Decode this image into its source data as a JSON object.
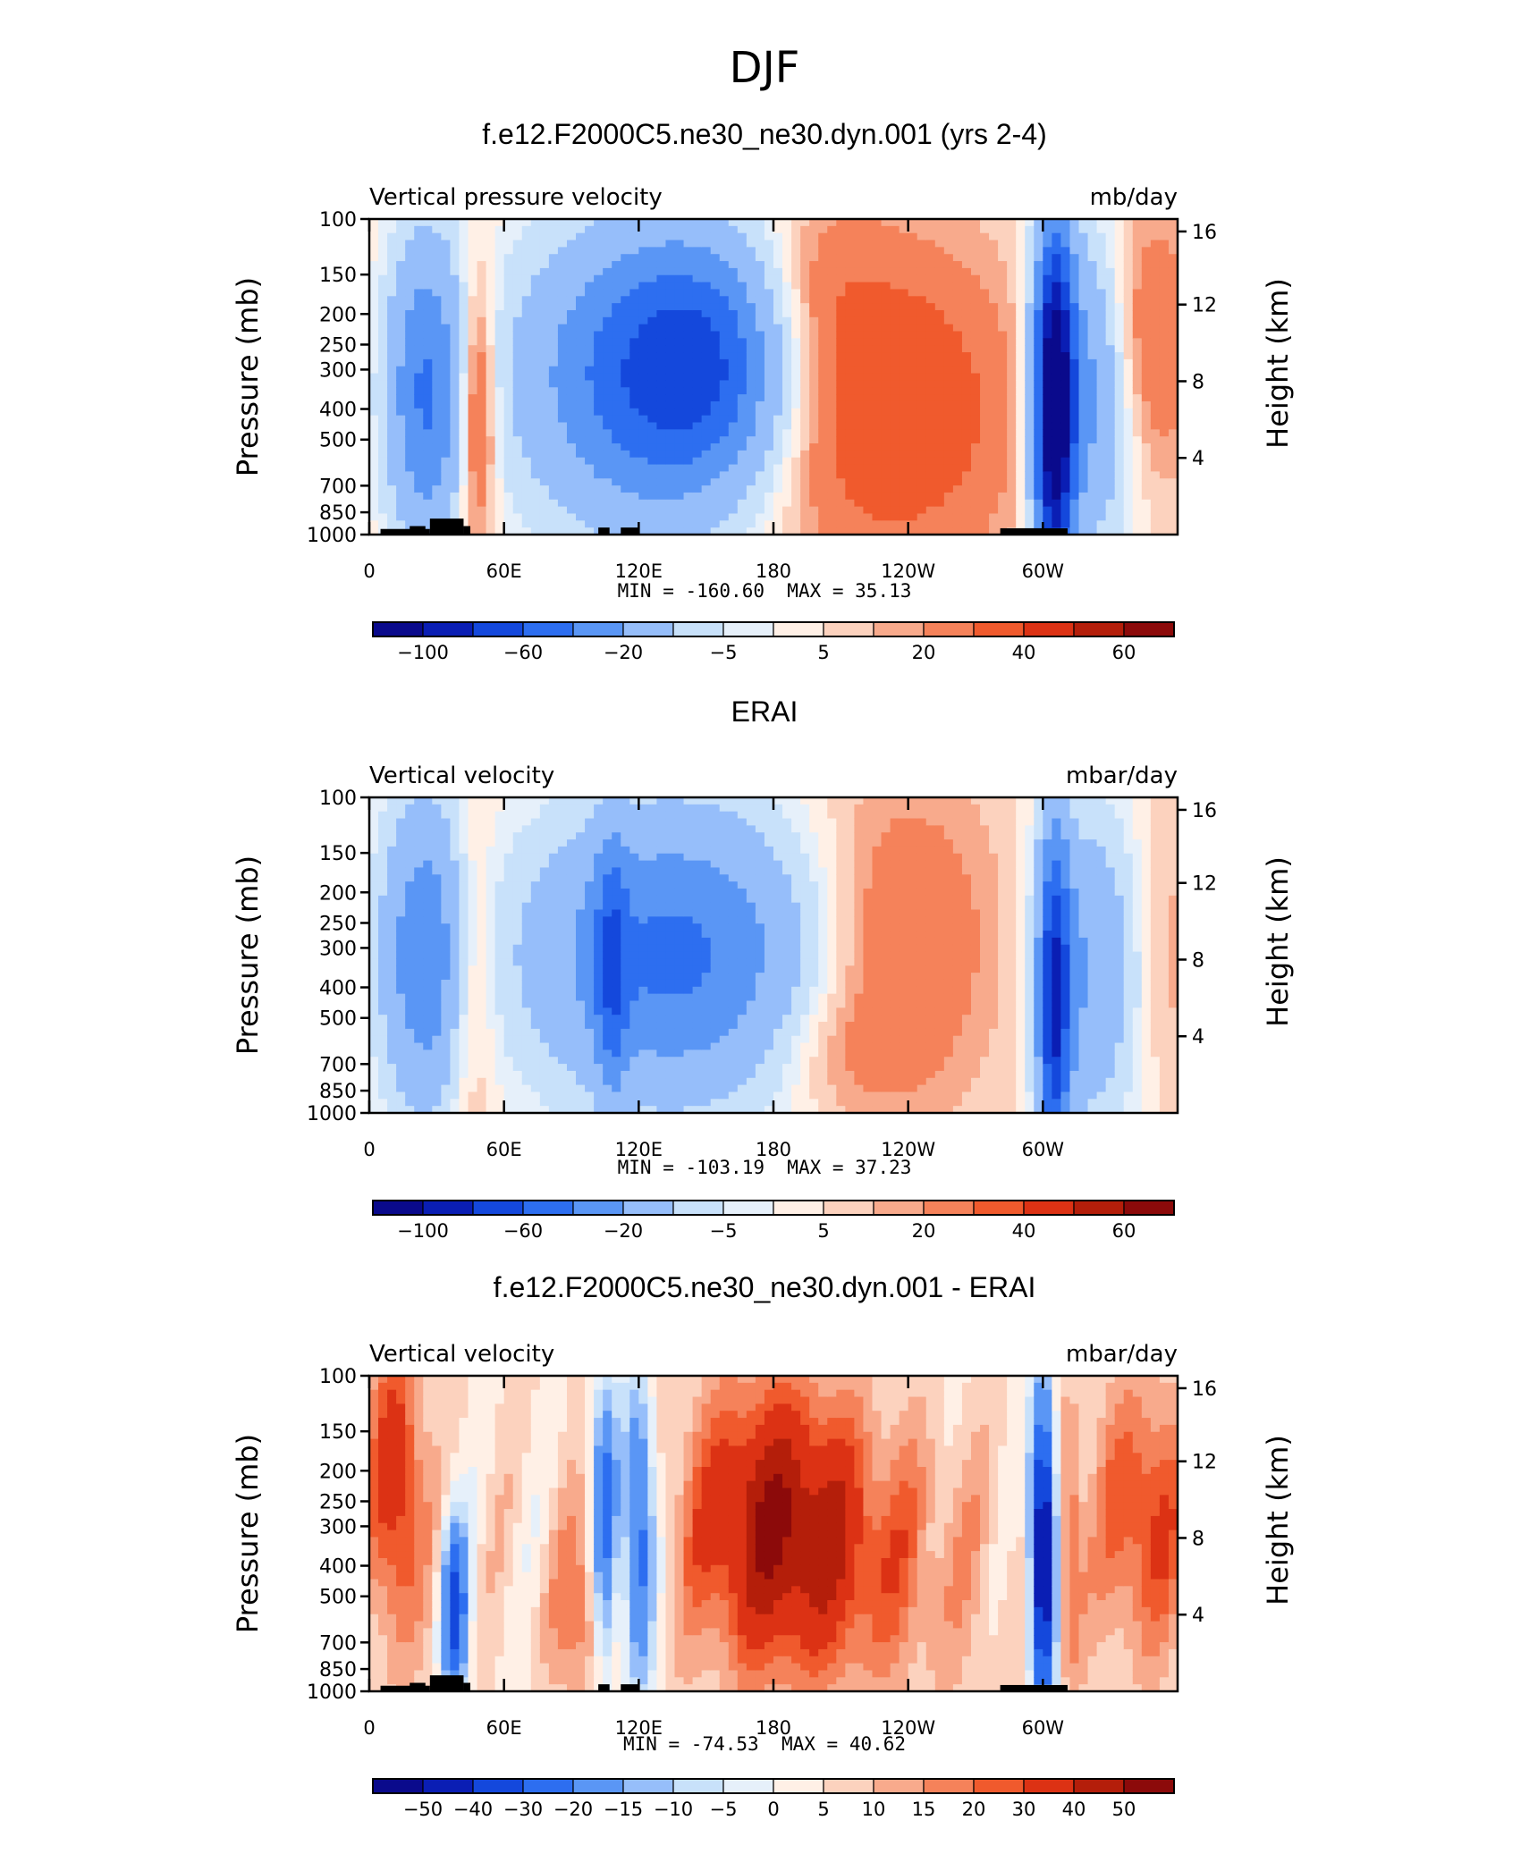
{
  "figure": {
    "title": "DJF"
  },
  "chart_data": [
    {
      "type": "heatmap",
      "title": "f.e12.F2000C5.ne30_ne30.dyn.001 (yrs 2-4)",
      "left_label": "Vertical pressure velocity",
      "units": "mb/day",
      "ylabel": "Pressure (mb)",
      "ylabel_right": "Height (km)",
      "xticks": [
        "0",
        "60E",
        "120E",
        "180",
        "120W",
        "60W"
      ],
      "yticks": [
        "100",
        "150",
        "200",
        "250",
        "300",
        "400",
        "500",
        "700",
        "850",
        "1000"
      ],
      "yticks_right": [
        "16",
        "12",
        "8",
        "4"
      ],
      "xlim": [
        0,
        360
      ],
      "ylim": [
        1000,
        100
      ],
      "yscale": "log",
      "min_label": "MIN = -160.60",
      "max_label": "MAX =   35.13",
      "colorbar_labels": [
        "-100",
        "-60",
        "-20",
        "-5",
        "5",
        "20",
        "40",
        "60"
      ],
      "colorbar_colors": [
        "#0a0a8c",
        "#0a1eb4",
        "#1448dc",
        "#2d6ef0",
        "#5a96f5",
        "#96befa",
        "#c8e1fa",
        "#e6f0fa",
        "#fff0e6",
        "#fcd2be",
        "#f8aa8c",
        "#f5825a",
        "#f05a2d",
        "#dc3214",
        "#b41e0a",
        "#8c0a0a"
      ],
      "topography": true
    },
    {
      "type": "heatmap",
      "title": "ERAI",
      "left_label": "Vertical velocity",
      "units": "mbar/day",
      "ylabel": "Pressure (mb)",
      "ylabel_right": "Height (km)",
      "xticks": [
        "0",
        "60E",
        "120E",
        "180",
        "120W",
        "60W"
      ],
      "yticks": [
        "100",
        "150",
        "200",
        "250",
        "300",
        "400",
        "500",
        "700",
        "850",
        "1000"
      ],
      "yticks_right": [
        "16",
        "12",
        "8",
        "4"
      ],
      "xlim": [
        0,
        360
      ],
      "ylim": [
        1000,
        100
      ],
      "yscale": "log",
      "min_label": "MIN = -103.19",
      "max_label": "MAX =   37.23",
      "colorbar_labels": [
        "-100",
        "-60",
        "-20",
        "-5",
        "5",
        "20",
        "40",
        "60"
      ],
      "colorbar_colors": [
        "#0a0a8c",
        "#0a1eb4",
        "#1448dc",
        "#2d6ef0",
        "#5a96f5",
        "#96befa",
        "#c8e1fa",
        "#e6f0fa",
        "#fff0e6",
        "#fcd2be",
        "#f8aa8c",
        "#f5825a",
        "#f05a2d",
        "#dc3214",
        "#b41e0a",
        "#8c0a0a"
      ],
      "topography": false
    },
    {
      "type": "heatmap",
      "title": "f.e12.F2000C5.ne30_ne30.dyn.001 - ERAI",
      "left_label": "Vertical velocity",
      "units": "mbar/day",
      "ylabel": "Pressure (mb)",
      "ylabel_right": "Height (km)",
      "xticks": [
        "0",
        "60E",
        "120E",
        "180",
        "120W",
        "60W"
      ],
      "yticks": [
        "100",
        "150",
        "200",
        "250",
        "300",
        "400",
        "500",
        "700",
        "850",
        "1000"
      ],
      "yticks_right": [
        "16",
        "12",
        "8",
        "4"
      ],
      "xlim": [
        0,
        360
      ],
      "ylim": [
        1000,
        100
      ],
      "yscale": "log",
      "min_label": "MIN = -74.53",
      "max_label": "MAX =   40.62",
      "colorbar_labels": [
        "-50",
        "-40",
        "-30",
        "-20",
        "-15",
        "-10",
        "-5",
        "0",
        "5",
        "10",
        "15",
        "20",
        "30",
        "40",
        "50"
      ],
      "colorbar_colors": [
        "#0a0a8c",
        "#0a1eb4",
        "#1448dc",
        "#2d6ef0",
        "#5a96f5",
        "#96befa",
        "#c8e1fa",
        "#e6f0fa",
        "#fff0e6",
        "#fcd2be",
        "#f8aa8c",
        "#f5825a",
        "#f05a2d",
        "#dc3214",
        "#b41e0a",
        "#8c0a0a"
      ],
      "topography": true
    }
  ]
}
